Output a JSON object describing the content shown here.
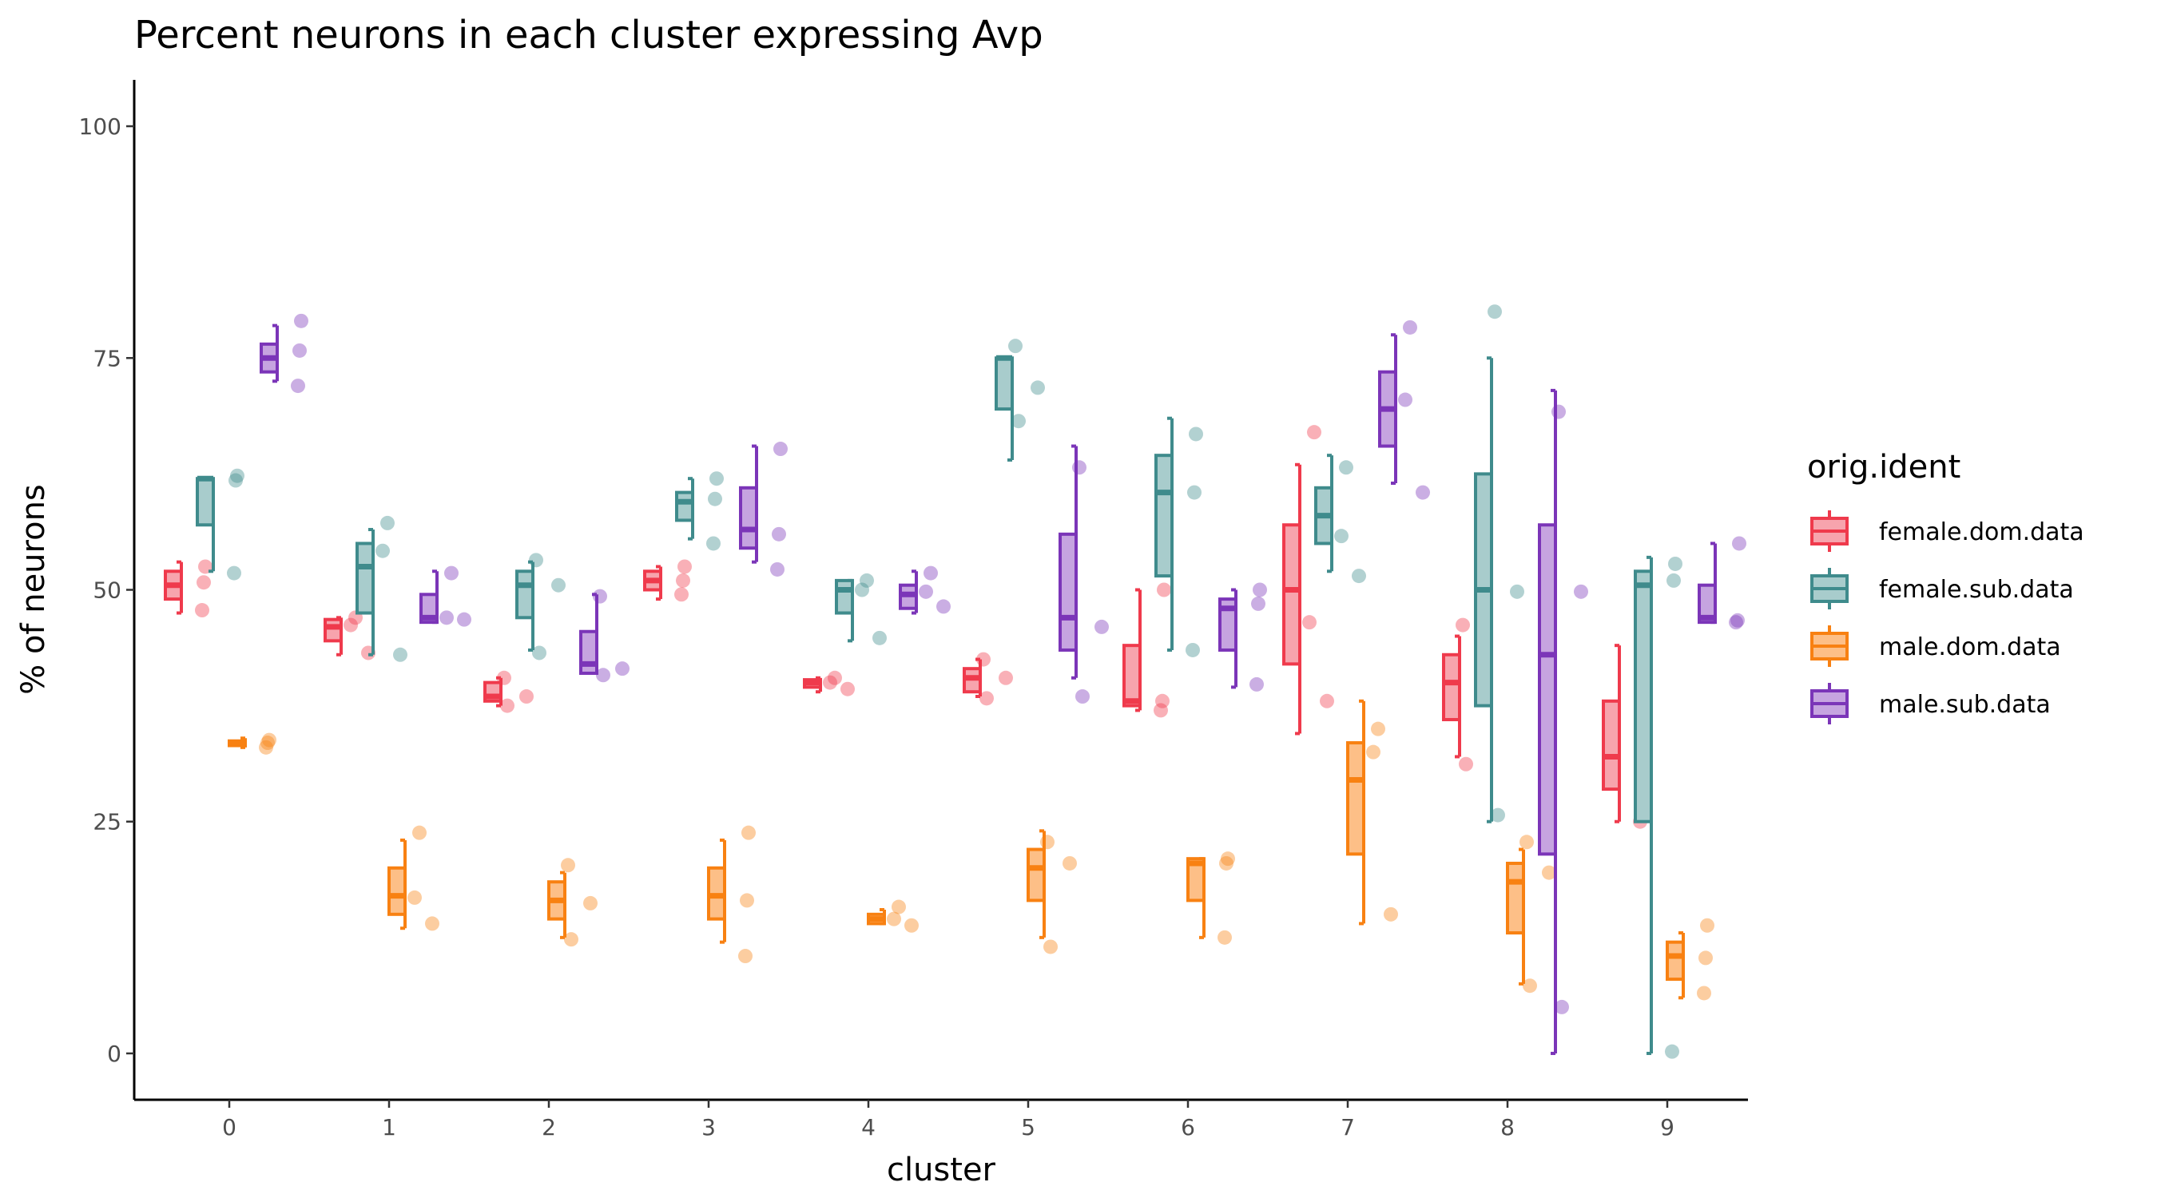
{
  "chart_data": {
    "type": "box",
    "title": "Percent neurons in each cluster expressing Avp",
    "xlabel": "cluster",
    "ylabel": "% of neurons",
    "categories": [
      "0",
      "1",
      "2",
      "3",
      "4",
      "5",
      "6",
      "7",
      "8",
      "9"
    ],
    "yticks": [
      0,
      25,
      50,
      75,
      100
    ],
    "ylim": [
      -5,
      105
    ],
    "grid": false,
    "legend": {
      "title": "orig.ident",
      "placement": "right",
      "entries": [
        "female.dom.data",
        "female.sub.data",
        "male.dom.data",
        "male.sub.data"
      ]
    },
    "series": [
      {
        "name": "female.dom.data",
        "color": "#ef3a4c",
        "fill": "#f7a4ad",
        "boxes": [
          {
            "min": 47.5,
            "q1": 49,
            "median": 50.5,
            "q3": 52,
            "max": 53,
            "points": [
              52.5,
              50.8,
              47.8
            ]
          },
          {
            "min": 43,
            "q1": 44.5,
            "median": 46,
            "q3": 46.8,
            "max": 47,
            "points": [
              47,
              46.2,
              43.2
            ]
          },
          {
            "min": 37.5,
            "q1": 38,
            "median": 38.5,
            "q3": 40,
            "max": 40.5,
            "points": [
              40.5,
              38.5,
              37.5
            ]
          },
          {
            "min": 49,
            "q1": 50,
            "median": 51,
            "q3": 52,
            "max": 52.5,
            "points": [
              52.5,
              51,
              49.5
            ]
          },
          {
            "min": 39,
            "q1": 39.5,
            "median": 40,
            "q3": 40.3,
            "max": 40.5,
            "points": [
              40.5,
              40,
              39.3
            ]
          },
          {
            "min": 38.5,
            "q1": 39,
            "median": 40.5,
            "q3": 41.5,
            "max": 42.5,
            "points": [
              42.5,
              40.5,
              38.3
            ]
          },
          {
            "min": 37,
            "q1": 37.5,
            "median": 38,
            "q3": 44,
            "max": 50,
            "points": [
              50,
              38,
              37
            ]
          },
          {
            "min": 34.5,
            "q1": 42,
            "median": 50,
            "q3": 57,
            "max": 63.5,
            "points": [
              67,
              46.5,
              38
            ]
          },
          {
            "min": 32,
            "q1": 36,
            "median": 40,
            "q3": 43,
            "max": 45,
            "points": [
              46.2,
              39.5,
              31.2
            ]
          },
          {
            "min": 25,
            "q1": 28.5,
            "median": 32,
            "q3": 38,
            "max": 44,
            "points": [
              44,
              31.8,
              25
            ]
          }
        ]
      },
      {
        "name": "female.sub.data",
        "color": "#3f8b8c",
        "fill": "#a8cccc",
        "boxes": [
          {
            "min": 52,
            "q1": 57,
            "median": 62,
            "q3": 62,
            "max": 62,
            "points": [
              62.3,
              61.8,
              51.8
            ]
          },
          {
            "min": 43,
            "q1": 47.5,
            "median": 52.5,
            "q3": 55,
            "max": 56.5,
            "points": [
              57.2,
              54.2,
              43
            ]
          },
          {
            "min": 43.5,
            "q1": 47,
            "median": 50.5,
            "q3": 52,
            "max": 53,
            "points": [
              53.2,
              50.5,
              43.2
            ]
          },
          {
            "min": 55.5,
            "q1": 57.5,
            "median": 59.5,
            "q3": 60.5,
            "max": 62,
            "points": [
              62,
              59.8,
              55
            ]
          },
          {
            "min": 44.5,
            "q1": 47.5,
            "median": 50,
            "q3": 51,
            "max": 51,
            "points": [
              51,
              50,
              44.8
            ]
          },
          {
            "min": 64,
            "q1": 69.5,
            "median": 75,
            "q3": 75,
            "max": 75,
            "points": [
              76.3,
              71.8,
              68.2
            ]
          },
          {
            "min": 43.5,
            "q1": 51.5,
            "median": 60.5,
            "q3": 64.5,
            "max": 68.5,
            "points": [
              66.8,
              60.5,
              43.5
            ]
          },
          {
            "min": 52,
            "q1": 55,
            "median": 58,
            "q3": 61,
            "max": 64.5,
            "points": [
              63.2,
              55.8,
              51.5
            ]
          },
          {
            "min": 25,
            "q1": 37.5,
            "median": 50,
            "q3": 62.5,
            "max": 75,
            "points": [
              80,
              49.8,
              25.7
            ]
          },
          {
            "min": 0,
            "q1": 25,
            "median": 50.5,
            "q3": 52,
            "max": 53.5,
            "points": [
              52.8,
              51,
              0.2
            ]
          }
        ]
      },
      {
        "name": "male.dom.data",
        "color": "#f88112",
        "fill": "#fdbf87",
        "boxes": [
          {
            "min": 33,
            "q1": 33.2,
            "median": 33.5,
            "q3": 33.7,
            "max": 34,
            "points": [
              33.8,
              33.5,
              33
            ]
          },
          {
            "min": 13.5,
            "q1": 15,
            "median": 17,
            "q3": 20,
            "max": 23,
            "points": [
              23.8,
              16.8,
              14
            ]
          },
          {
            "min": 12.5,
            "q1": 14.5,
            "median": 16.5,
            "q3": 18.5,
            "max": 19.5,
            "points": [
              20.3,
              16.2,
              12.3
            ]
          },
          {
            "min": 12,
            "q1": 14.5,
            "median": 17,
            "q3": 20,
            "max": 23,
            "points": [
              23.8,
              16.5,
              10.5
            ]
          },
          {
            "min": 14,
            "q1": 14,
            "median": 14.5,
            "q3": 15,
            "max": 15.5,
            "points": [
              15.8,
              14.5,
              13.8
            ]
          },
          {
            "min": 12.5,
            "q1": 16.5,
            "median": 20,
            "q3": 22,
            "max": 24,
            "points": [
              22.8,
              20.5,
              11.5
            ]
          },
          {
            "min": 12.5,
            "q1": 16.5,
            "median": 20.5,
            "q3": 21,
            "max": 21,
            "points": [
              21,
              20.5,
              12.5
            ]
          },
          {
            "min": 14,
            "q1": 21.5,
            "median": 29.5,
            "q3": 33.5,
            "max": 38,
            "points": [
              35,
              32.5,
              15
            ]
          },
          {
            "min": 7.5,
            "q1": 13,
            "median": 18.5,
            "q3": 20.5,
            "max": 22,
            "points": [
              22.8,
              19.5,
              7.3
            ]
          },
          {
            "min": 6,
            "q1": 8,
            "median": 10.5,
            "q3": 12,
            "max": 13,
            "points": [
              13.8,
              10.3,
              6.5
            ]
          }
        ]
      },
      {
        "name": "male.sub.data",
        "color": "#7b35b8",
        "fill": "#c6a4e0",
        "boxes": [
          {
            "min": 72.5,
            "q1": 73.5,
            "median": 75,
            "q3": 76.5,
            "max": 78.5,
            "points": [
              79,
              75.8,
              72
            ]
          },
          {
            "min": 46.5,
            "q1": 46.5,
            "median": 47,
            "q3": 49.5,
            "max": 52,
            "points": [
              51.8,
              47,
              46.8
            ]
          },
          {
            "min": 41,
            "q1": 41,
            "median": 42,
            "q3": 45.5,
            "max": 49.5,
            "points": [
              49.3,
              41.5,
              40.8
            ]
          },
          {
            "min": 53,
            "q1": 54.5,
            "median": 56.5,
            "q3": 61,
            "max": 65.5,
            "points": [
              65.2,
              56,
              52.2
            ]
          },
          {
            "min": 47.5,
            "q1": 48,
            "median": 49.5,
            "q3": 50.5,
            "max": 52,
            "points": [
              51.8,
              49.8,
              48.2
            ]
          },
          {
            "min": 40.5,
            "q1": 43.5,
            "median": 47,
            "q3": 56,
            "max": 65.5,
            "points": [
              63.2,
              46,
              38.5
            ]
          },
          {
            "min": 39.5,
            "q1": 43.5,
            "median": 48,
            "q3": 49,
            "max": 50,
            "points": [
              50,
              48.5,
              39.8
            ]
          },
          {
            "min": 61.5,
            "q1": 65.5,
            "median": 69.5,
            "q3": 73.5,
            "max": 77.5,
            "points": [
              78.3,
              70.5,
              60.5
            ]
          },
          {
            "min": 0,
            "q1": 21.5,
            "median": 43,
            "q3": 57,
            "max": 71.5,
            "points": [
              69.2,
              49.8,
              5
            ]
          },
          {
            "min": 46.5,
            "q1": 46.5,
            "median": 47,
            "q3": 50.5,
            "max": 55,
            "points": [
              55,
              46.7,
              46.5
            ]
          }
        ]
      }
    ]
  }
}
